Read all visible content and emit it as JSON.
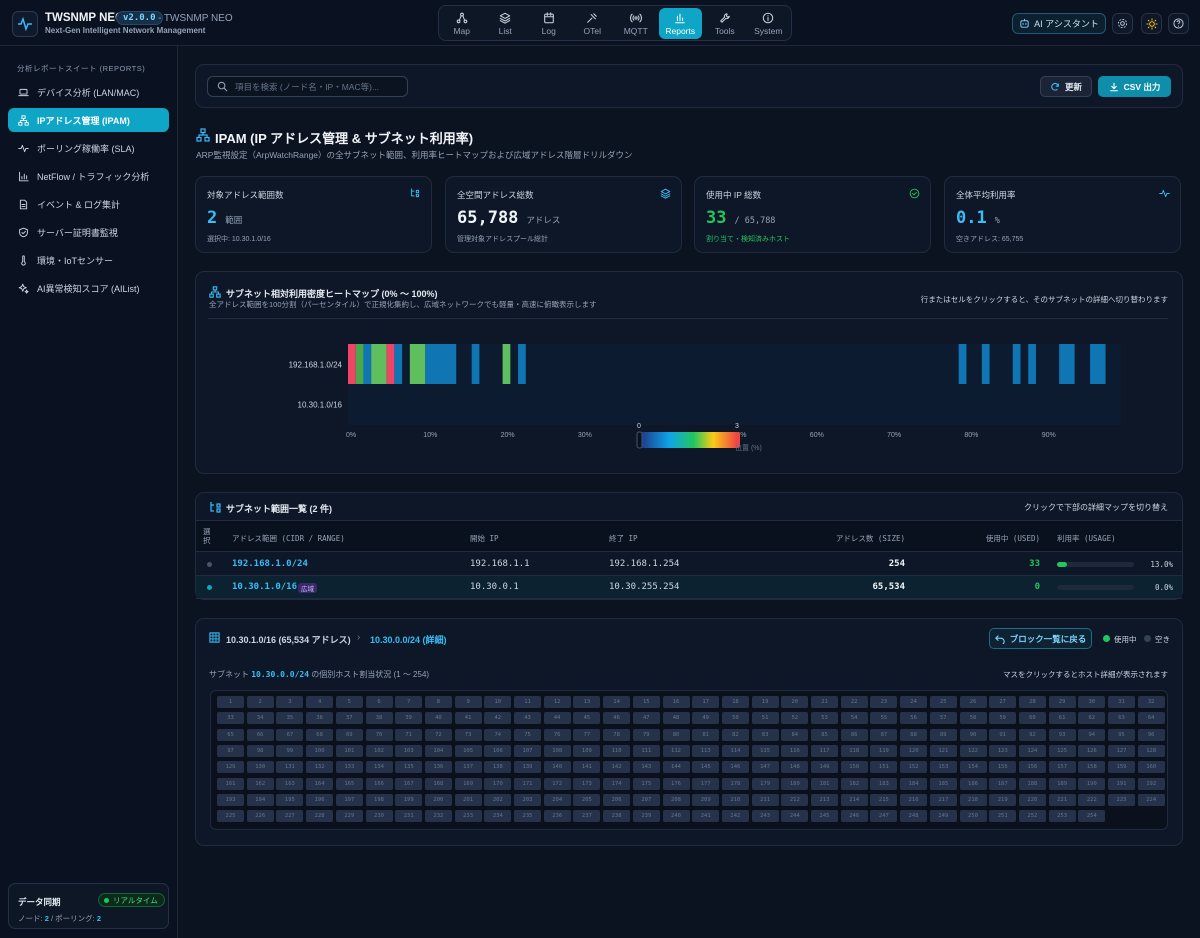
{
  "app": {
    "title": "TWSNMP NEO",
    "version": "v2.0.0",
    "window_suffix": "- TWSNMP NEO",
    "subtitle": "Next-Gen Intelligent Network Management"
  },
  "nav": [
    {
      "label": "Map",
      "icon": "map-icon"
    },
    {
      "label": "List",
      "icon": "list-icon"
    },
    {
      "label": "Log",
      "icon": "log-icon"
    },
    {
      "label": "OTel",
      "icon": "otel-icon"
    },
    {
      "label": "MQTT",
      "icon": "mqtt-icon"
    },
    {
      "label": "Reports",
      "icon": "reports-icon",
      "active": true
    },
    {
      "label": "Tools",
      "icon": "tools-icon"
    },
    {
      "label": "System",
      "icon": "info-icon"
    }
  ],
  "header_actions": {
    "ai_label": "AI アシスタント"
  },
  "sidebar": {
    "title": "分析レポートスイート (REPORTS)",
    "items": [
      {
        "label": "デバイス分析 (LAN/MAC)",
        "icon": "laptop-icon"
      },
      {
        "label": "IPアドレス管理 (IPAM)",
        "icon": "network-icon",
        "active": true
      },
      {
        "label": "ポーリング稼働率 (SLA)",
        "icon": "pulse-icon"
      },
      {
        "label": "NetFlow / トラフィック分析",
        "icon": "bar-chart-icon"
      },
      {
        "label": "イベント & ログ集計",
        "icon": "document-icon"
      },
      {
        "label": "サーバー証明書監視",
        "icon": "shield-icon"
      },
      {
        "label": "環境・IoTセンサー",
        "icon": "thermometer-icon"
      },
      {
        "label": "AI異常検知スコア (AIList)",
        "icon": "sparkle-icon"
      }
    ],
    "sync": {
      "title": "データ同期",
      "badge": "リアルタイム",
      "node_label": "ノード:",
      "node_count": "2",
      "sep": "/",
      "poll_label": "ポーリング:",
      "poll_count": "2"
    }
  },
  "toolbar": {
    "search_placeholder": "項目を検索 (ノード名・IP・MAC等)...",
    "refresh_label": "更新",
    "csv_label": "CSV 出力"
  },
  "page": {
    "title": "IPAM (IP アドレス管理 & サブネット利用率)",
    "subtitle": "ARP監視設定（ArpWatchRange）の全サブネット範囲、利用率ヒートマップおよび広域アドレス階層ドリルダウン"
  },
  "kpis": [
    {
      "title": "対象アドレス範囲数",
      "value": "2",
      "unit": "範囲",
      "foot": "選択中: 10.30.1.0/16",
      "color": "#38bdf8",
      "icon": "subnet-icon"
    },
    {
      "title": "全空間アドレス総数",
      "value": "65,788",
      "unit": "アドレス",
      "foot": "管理対象アドレスプール総計",
      "color": "#f1f5f9",
      "icon": "layers-icon"
    },
    {
      "title": "使用中 IP 総数",
      "value": "33",
      "unit": "/ 65,788",
      "foot": "割り当て・検知済みホスト",
      "color": "#22c55e",
      "icon": "check-circle-icon"
    },
    {
      "title": "全体平均利用率",
      "value": "0.1",
      "unit": "%",
      "foot": "空きアドレス: 65,755",
      "color": "#38bdf8",
      "icon": "pulse-icon"
    }
  ],
  "heatmap": {
    "title": "サブネット相対利用密度ヒートマップ (0% 〜 100%)",
    "subtitle": "全アドレス範囲を100分割（パーセンタイル）で正規化集約し、広域ネットワークでも軽量・高速に俯瞰表示します",
    "hint": "行またはセルをクリックすると、そのサブネットの詳細へ切り替わります",
    "rows": [
      "192.168.1.0/24",
      "10.30.1.0/16"
    ],
    "xticks": [
      "0%",
      "10%",
      "20%",
      "30%",
      "40%",
      "50%",
      "60%",
      "70%",
      "80%",
      "90%"
    ],
    "legend": {
      "min": "0",
      "max": "3",
      "label": "位置 (%)",
      "obscured_tick_40": "40%",
      "obscured_tick_50": "50%"
    },
    "chart_data": {
      "type": "heatmap",
      "x_unit": "% of address range",
      "rows": [
        {
          "name": "192.168.1.0/24",
          "cells": [
            {
              "from": 0,
              "to": 1,
              "v": 3
            },
            {
              "from": 1,
              "to": 2,
              "v": 1
            },
            {
              "from": 2,
              "to": 3,
              "v": 0
            },
            {
              "from": 3,
              "to": 5,
              "v": 2
            },
            {
              "from": 5,
              "to": 6,
              "v": 3
            },
            {
              "from": 6,
              "to": 7,
              "v": 0
            },
            {
              "from": 8,
              "to": 10,
              "v": 2
            },
            {
              "from": 10,
              "to": 14,
              "v": 0
            },
            {
              "from": 16,
              "to": 17,
              "v": 0
            },
            {
              "from": 20,
              "to": 21,
              "v": 2
            },
            {
              "from": 22,
              "to": 23,
              "v": 0
            },
            {
              "from": 79,
              "to": 80,
              "v": 0
            },
            {
              "from": 82,
              "to": 83,
              "v": 0
            },
            {
              "from": 86,
              "to": 87,
              "v": 0
            },
            {
              "from": 88,
              "to": 89,
              "v": 0
            },
            {
              "from": 92,
              "to": 94,
              "v": 0
            },
            {
              "from": 96,
              "to": 98,
              "v": 0
            }
          ]
        },
        {
          "name": "10.30.1.0/16",
          "cells": []
        }
      ],
      "vmin": 0,
      "vmax": 3
    }
  },
  "table": {
    "title": "サブネット範囲一覧 (2 件)",
    "hint": "クリックで下部の詳細マップを切り替え",
    "headers": [
      "選択",
      "アドレス範囲 (CIDR / RANGE)",
      "開始 IP",
      "終了 IP",
      "アドレス数 (SIZE)",
      "使用中 (USED)",
      "利用率 (USAGE)"
    ],
    "rows": [
      {
        "cidr": "192.168.1.0/24",
        "badge": "",
        "start": "192.168.1.1",
        "end": "192.168.1.254",
        "size": "254",
        "used": "33",
        "usage_pct": 13.0,
        "usage": "13.0%"
      },
      {
        "cidr": "10.30.1.0/16",
        "badge": "広域",
        "start": "10.30.0.1",
        "end": "10.30.255.254",
        "size": "65,534",
        "used": "0",
        "usage_pct": 0.0,
        "usage": "0.0%"
      }
    ]
  },
  "detail": {
    "crumb1": "10.30.1.0/16 (65,534 アドレス)",
    "crumb2": "10.30.0.0/24 (詳細)",
    "back_label": "ブロック一覧に戻る",
    "legend_used": "使用中",
    "legend_free": "空き",
    "desc_prefix": "サブネット",
    "desc_subnet": "10.30.0.0/24",
    "desc_suffix": "の個別ホスト割当状況 (1 〜 254)",
    "hint": "マスをクリックするとホスト詳細が表示されます",
    "host_count": 254
  },
  "colors": {
    "accent": "#0ea5c6",
    "green": "#22c55e",
    "cyan": "#38bdf8"
  }
}
